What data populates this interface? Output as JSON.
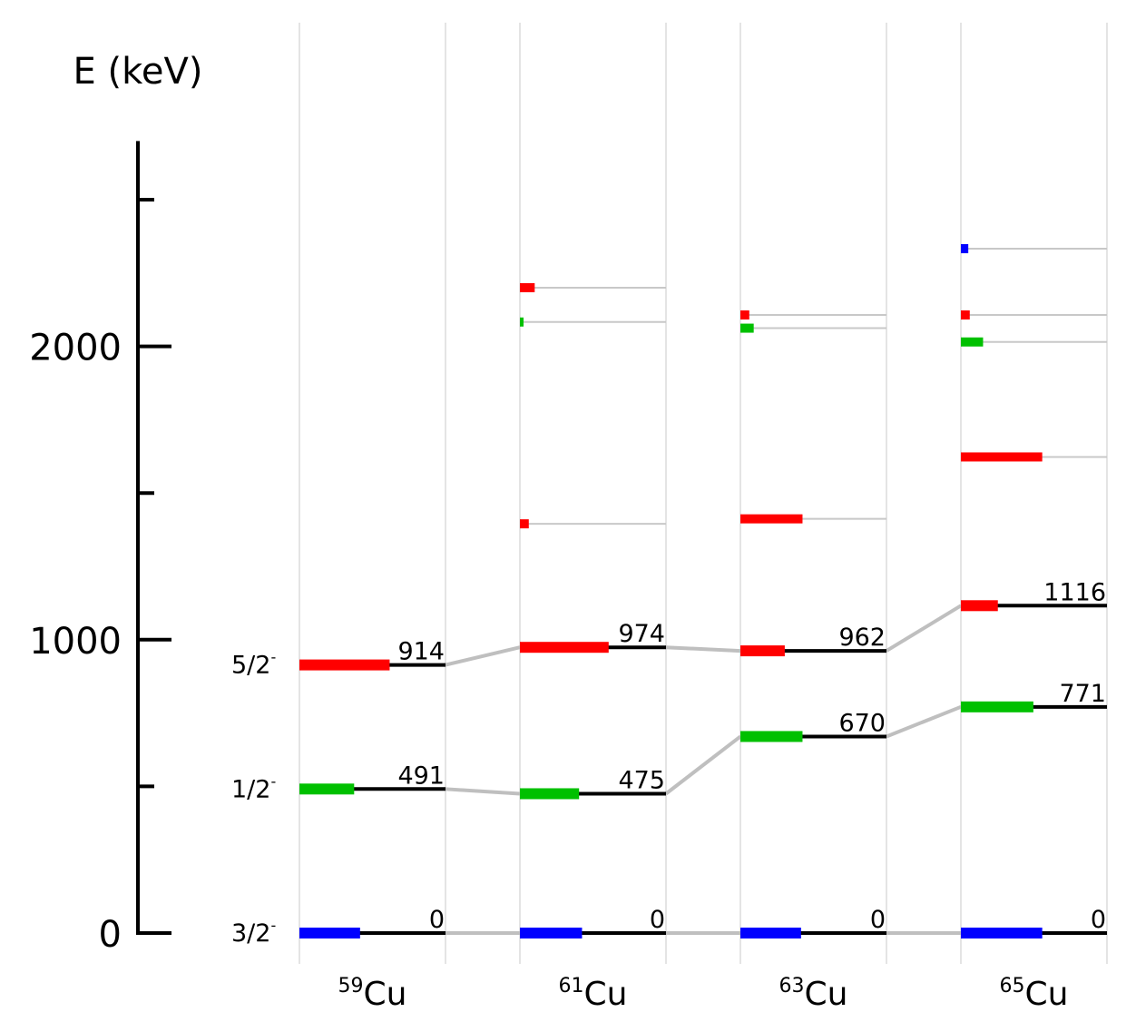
{
  "chart_data": {
    "type": "level-scheme",
    "title": "",
    "ylabel": "E (keV)",
    "ylim": [
      0,
      2700
    ],
    "y_ticks_major": [
      0,
      1000,
      2000
    ],
    "y_ticks_minor": [
      500,
      1500,
      2500
    ],
    "y_tick_labels": [
      "0",
      "1000",
      "2000"
    ],
    "spin_labels": [
      {
        "base": "3/2",
        "sup": "-",
        "energy": 0
      },
      {
        "base": "1/2",
        "sup": "-",
        "energy": 491
      },
      {
        "base": "5/2",
        "sup": "-",
        "energy": 914
      }
    ],
    "colors": {
      "j32": "#0000ff",
      "j12": "#00c000",
      "j52": "#ff0000",
      "level": "#000000",
      "connector": "#bfbfbf",
      "grid": "#c8c8c8"
    },
    "nuclei": [
      {
        "mass": "59",
        "symbol": "Cu",
        "labeled": [
          {
            "energy": 0,
            "label": "0",
            "color": "j32",
            "strength": 0.41
          },
          {
            "energy": 491,
            "label": "491",
            "color": "j12",
            "strength": 0.37
          },
          {
            "energy": 914,
            "label": "914",
            "color": "j52",
            "strength": 0.61
          }
        ],
        "other": []
      },
      {
        "mass": "61",
        "symbol": "Cu",
        "labeled": [
          {
            "energy": 0,
            "label": "0",
            "color": "j32",
            "strength": 0.42
          },
          {
            "energy": 475,
            "label": "475",
            "color": "j12",
            "strength": 0.4
          },
          {
            "energy": 974,
            "label": "974",
            "color": "j52",
            "strength": 0.6
          }
        ],
        "other": [
          {
            "energy": 1395,
            "color": "j52",
            "strength": 0.06
          },
          {
            "energy": 2083,
            "color": "j12",
            "strength": 0.02
          },
          {
            "energy": 2200,
            "color": "j52",
            "strength": 0.1
          }
        ]
      },
      {
        "mass": "63",
        "symbol": "Cu",
        "labeled": [
          {
            "energy": 0,
            "label": "0",
            "color": "j32",
            "strength": 0.41
          },
          {
            "energy": 670,
            "label": "670",
            "color": "j12",
            "strength": 0.42
          },
          {
            "energy": 962,
            "label": "962",
            "color": "j52",
            "strength": 0.3
          }
        ],
        "other": [
          {
            "energy": 1412,
            "color": "j52",
            "strength": 0.42
          },
          {
            "energy": 2062,
            "color": "j12",
            "strength": 0.09
          },
          {
            "energy": 2107,
            "color": "j52",
            "strength": 0.06
          }
        ]
      },
      {
        "mass": "65",
        "symbol": "Cu",
        "labeled": [
          {
            "energy": 0,
            "label": "0",
            "color": "j32",
            "strength": 0.55
          },
          {
            "energy": 771,
            "label": "771",
            "color": "j12",
            "strength": 0.49
          },
          {
            "energy": 1116,
            "label": "1116",
            "color": "j52",
            "strength": 0.25
          }
        ],
        "other": [
          {
            "energy": 1623,
            "color": "j52",
            "strength": 0.55
          },
          {
            "energy": 2015,
            "color": "j12",
            "strength": 0.15
          },
          {
            "energy": 2107,
            "color": "j52",
            "strength": 0.06
          },
          {
            "energy": 2333,
            "color": "j32",
            "strength": 0.05
          }
        ]
      }
    ]
  }
}
